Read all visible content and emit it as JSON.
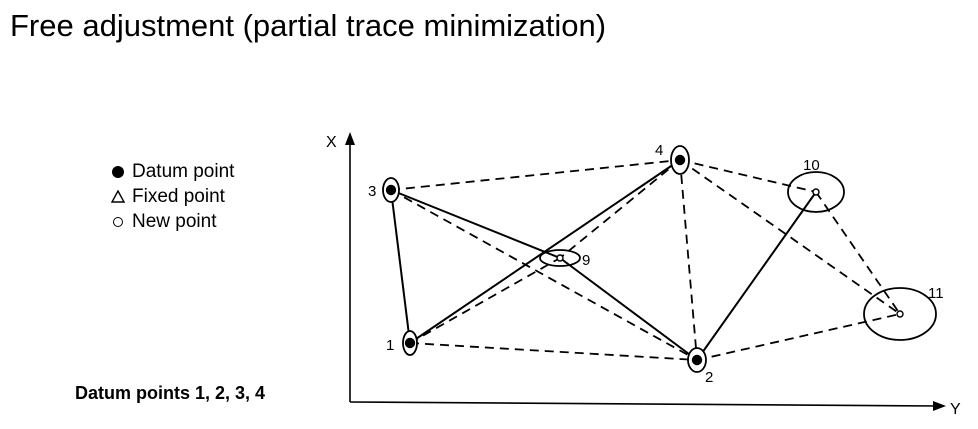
{
  "title": "Free adjustment (partial trace minimization)",
  "legend": {
    "items": [
      {
        "symbol": "filled-circle-icon",
        "label": "Datum point"
      },
      {
        "symbol": "triangle-icon",
        "label": "Fixed point"
      },
      {
        "symbol": "open-circle-icon",
        "label": "New point"
      }
    ]
  },
  "caption": "Datum points 1, 2, 3, 4",
  "axes": {
    "x_label": "X",
    "y_label": "Y"
  },
  "points": [
    {
      "id": "1",
      "label": "1",
      "type": "datum"
    },
    {
      "id": "2",
      "label": "2",
      "type": "datum"
    },
    {
      "id": "3",
      "label": "3",
      "type": "datum"
    },
    {
      "id": "4",
      "label": "4",
      "type": "datum"
    },
    {
      "id": "9",
      "label": "9",
      "type": "new"
    },
    {
      "id": "10",
      "label": "10",
      "type": "new"
    },
    {
      "id": "11",
      "label": "11",
      "type": "new"
    }
  ],
  "connections": [
    {
      "from": "3",
      "to": "1",
      "style": "solid"
    },
    {
      "from": "3",
      "to": "4",
      "style": "dashed"
    },
    {
      "from": "3",
      "to": "9",
      "style": "solid"
    },
    {
      "from": "3",
      "to": "2",
      "style": "dashed"
    },
    {
      "from": "1",
      "to": "4",
      "style": "solid"
    },
    {
      "from": "1",
      "to": "9",
      "style": "dashed"
    },
    {
      "from": "1",
      "to": "2",
      "style": "dashed"
    },
    {
      "from": "4",
      "to": "9",
      "style": "dashed"
    },
    {
      "from": "4",
      "to": "2",
      "style": "dashed"
    },
    {
      "from": "4",
      "to": "10",
      "style": "dashed"
    },
    {
      "from": "4",
      "to": "11",
      "style": "dashed"
    },
    {
      "from": "9",
      "to": "2",
      "style": "solid"
    },
    {
      "from": "2",
      "to": "10",
      "style": "solid"
    },
    {
      "from": "2",
      "to": "11",
      "style": "dashed"
    },
    {
      "from": "10",
      "to": "11",
      "style": "dashed"
    },
    {
      "from": "1",
      "to": "11",
      "style": "none"
    }
  ]
}
